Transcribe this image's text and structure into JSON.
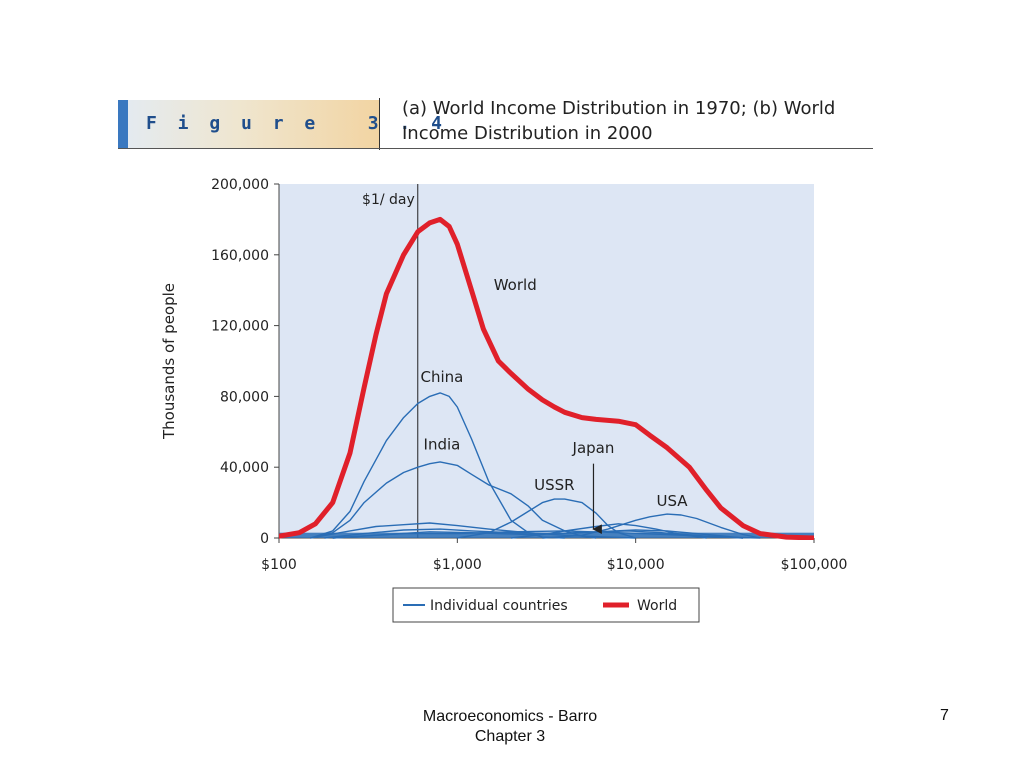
{
  "figure": {
    "label": "F i g u r e   3 . 4",
    "title_line1": "(a) World Income Distribution in 1970; (b) World",
    "title_line2": "Income Distribution in 2000"
  },
  "footer": {
    "line1": "Macroeconomics - Barro",
    "line2": "Chapter 3",
    "page_number": "7"
  },
  "colors": {
    "plot_background": "#dde6f4",
    "countries": "#2a6db5",
    "world": "#e0202a"
  },
  "chart_data": {
    "type": "line",
    "xscale": "log",
    "xlim": [
      100,
      100000
    ],
    "ylim": [
      0,
      200000
    ],
    "grid": false,
    "xlabel": "",
    "ylabel": "Thousands of people",
    "x_ticks": [
      {
        "value": 100,
        "label": "$100"
      },
      {
        "value": 1000,
        "label": "$1,000"
      },
      {
        "value": 10000,
        "label": "$10,000"
      },
      {
        "value": 100000,
        "label": "$100,000"
      }
    ],
    "y_ticks": [
      {
        "value": 0,
        "label": "0"
      },
      {
        "value": 40000,
        "label": "40,000"
      },
      {
        "value": 80000,
        "label": "80,000"
      },
      {
        "value": 120000,
        "label": "120,000"
      },
      {
        "value": 160000,
        "label": "160,000"
      },
      {
        "value": 200000,
        "label": "200,000"
      }
    ],
    "reference_line": {
      "x": 600,
      "label": "$1/ day"
    },
    "legend": {
      "position": "bottom",
      "items": [
        {
          "label": "Individual countries",
          "style": "countries"
        },
        {
          "label": "World",
          "style": "world"
        }
      ]
    },
    "series": [
      {
        "name": "World",
        "style": "world",
        "points": [
          [
            100,
            1000
          ],
          [
            130,
            3000
          ],
          [
            160,
            8000
          ],
          [
            200,
            20000
          ],
          [
            250,
            48000
          ],
          [
            300,
            85000
          ],
          [
            350,
            115000
          ],
          [
            400,
            138000
          ],
          [
            500,
            160000
          ],
          [
            600,
            173000
          ],
          [
            700,
            178000
          ],
          [
            800,
            180000
          ],
          [
            900,
            176000
          ],
          [
            1000,
            166000
          ],
          [
            1200,
            140000
          ],
          [
            1400,
            118000
          ],
          [
            1700,
            100000
          ],
          [
            2000,
            93000
          ],
          [
            2500,
            84000
          ],
          [
            3000,
            78000
          ],
          [
            3500,
            74000
          ],
          [
            4000,
            71000
          ],
          [
            5000,
            68000
          ],
          [
            6000,
            67000
          ],
          [
            8000,
            66000
          ],
          [
            10000,
            64000
          ],
          [
            12000,
            58000
          ],
          [
            15000,
            51000
          ],
          [
            20000,
            40000
          ],
          [
            25000,
            27000
          ],
          [
            30000,
            17000
          ],
          [
            40000,
            7000
          ],
          [
            50000,
            2500
          ],
          [
            70000,
            500
          ],
          [
            100000,
            0
          ]
        ]
      },
      {
        "name": "China",
        "style": "countries",
        "points": [
          [
            150,
            0
          ],
          [
            200,
            4000
          ],
          [
            250,
            15000
          ],
          [
            300,
            32000
          ],
          [
            400,
            55000
          ],
          [
            500,
            68000
          ],
          [
            600,
            76000
          ],
          [
            700,
            80000
          ],
          [
            800,
            82000
          ],
          [
            900,
            80000
          ],
          [
            1000,
            74000
          ],
          [
            1200,
            56000
          ],
          [
            1500,
            32000
          ],
          [
            2000,
            10000
          ],
          [
            2500,
            3000
          ],
          [
            3000,
            500
          ],
          [
            4000,
            0
          ]
        ]
      },
      {
        "name": "India",
        "style": "countries",
        "points": [
          [
            150,
            0
          ],
          [
            200,
            3000
          ],
          [
            250,
            10000
          ],
          [
            300,
            20000
          ],
          [
            400,
            31000
          ],
          [
            500,
            37000
          ],
          [
            600,
            40000
          ],
          [
            700,
            42000
          ],
          [
            800,
            43000
          ],
          [
            1000,
            41000
          ],
          [
            1200,
            36000
          ],
          [
            1500,
            30000
          ],
          [
            2000,
            25000
          ],
          [
            2500,
            18000
          ],
          [
            3000,
            10000
          ],
          [
            4000,
            4000
          ],
          [
            5000,
            1000
          ],
          [
            6000,
            0
          ]
        ]
      },
      {
        "name": "USSR",
        "style": "countries",
        "points": [
          [
            1000,
            0
          ],
          [
            1500,
            3000
          ],
          [
            2000,
            9000
          ],
          [
            2500,
            15000
          ],
          [
            3000,
            20000
          ],
          [
            3500,
            22000
          ],
          [
            4000,
            22000
          ],
          [
            5000,
            20000
          ],
          [
            6000,
            14000
          ],
          [
            7000,
            7000
          ],
          [
            8000,
            3000
          ],
          [
            10000,
            0
          ]
        ]
      },
      {
        "name": "USA",
        "style": "countries",
        "points": [
          [
            3000,
            0
          ],
          [
            5000,
            1500
          ],
          [
            7000,
            5000
          ],
          [
            10000,
            10000
          ],
          [
            12000,
            12000
          ],
          [
            15000,
            13500
          ],
          [
            18000,
            13000
          ],
          [
            22000,
            11000
          ],
          [
            30000,
            6000
          ],
          [
            40000,
            2000
          ],
          [
            50000,
            0
          ]
        ]
      },
      {
        "name": "Japan",
        "style": "countries",
        "points": [
          [
            2000,
            0
          ],
          [
            3000,
            2000
          ],
          [
            4000,
            4000
          ],
          [
            6000,
            6500
          ],
          [
            8000,
            8000
          ],
          [
            10000,
            7000
          ],
          [
            13000,
            5000
          ],
          [
            18000,
            2000
          ],
          [
            25000,
            0
          ]
        ]
      },
      {
        "name": "",
        "style": "countries",
        "points": [
          [
            150,
            0
          ],
          [
            250,
            4000
          ],
          [
            350,
            6500
          ],
          [
            500,
            7500
          ],
          [
            700,
            8500
          ],
          [
            1000,
            7000
          ],
          [
            1500,
            5000
          ],
          [
            2500,
            3000
          ],
          [
            4000,
            1500
          ],
          [
            7000,
            500
          ],
          [
            10000,
            0
          ]
        ]
      },
      {
        "name": "",
        "style": "countries",
        "points": [
          [
            180,
            0
          ],
          [
            300,
            2500
          ],
          [
            500,
            4500
          ],
          [
            800,
            5000
          ],
          [
            1200,
            4000
          ],
          [
            2000,
            3000
          ],
          [
            3500,
            2500
          ],
          [
            6000,
            3500
          ],
          [
            10000,
            4500
          ],
          [
            15000,
            4000
          ],
          [
            25000,
            2000
          ],
          [
            40000,
            0
          ]
        ]
      },
      {
        "name": "",
        "style": "countries",
        "points": [
          [
            200,
            0
          ],
          [
            400,
            2000
          ],
          [
            700,
            3500
          ],
          [
            1200,
            3000
          ],
          [
            2500,
            2000
          ],
          [
            5000,
            3000
          ],
          [
            9000,
            4000
          ],
          [
            14000,
            3000
          ],
          [
            25000,
            1000
          ],
          [
            40000,
            0
          ]
        ]
      },
      {
        "name": "",
        "style": "countries",
        "points": [
          [
            200,
            0
          ],
          [
            500,
            2500
          ],
          [
            1000,
            2500
          ],
          [
            2000,
            3500
          ],
          [
            4000,
            4000
          ],
          [
            8000,
            3000
          ],
          [
            15000,
            2000
          ],
          [
            30000,
            500
          ],
          [
            50000,
            0
          ]
        ]
      }
    ],
    "annotations": [
      {
        "text": "World",
        "x": 1600,
        "y": 140000,
        "anchor": "start"
      },
      {
        "text": "China",
        "x": 820,
        "y": 88000,
        "anchor": "middle"
      },
      {
        "text": "India",
        "x": 820,
        "y": 50000,
        "anchor": "middle"
      },
      {
        "text": "Japan",
        "x": 5800,
        "y": 48000,
        "anchor": "middle"
      },
      {
        "text": "USSR",
        "x": 3500,
        "y": 27000,
        "anchor": "middle"
      },
      {
        "text": "USA",
        "x": 16000,
        "y": 18000,
        "anchor": "middle"
      }
    ],
    "arrow": {
      "from": [
        5800,
        42000
      ],
      "to": [
        5800,
        5000
      ]
    }
  }
}
